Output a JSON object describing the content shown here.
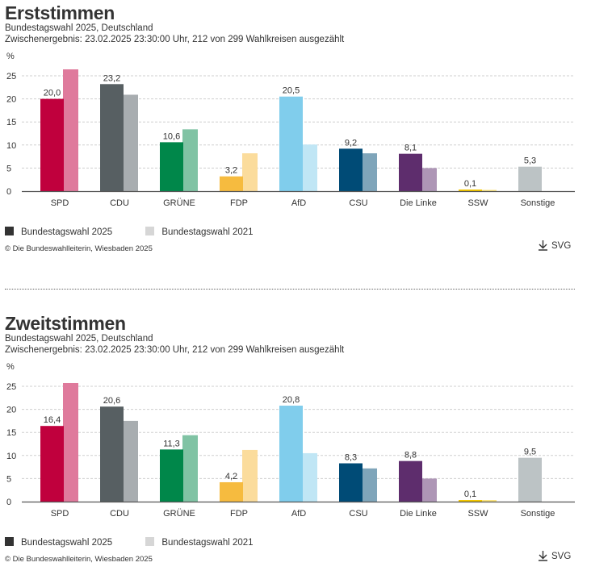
{
  "sections": [
    {
      "title": "Erststimmen",
      "subtitle1": "Bundestagswahl 2025, Deutschland",
      "subtitle2": "Zwischenergebnis: 23.02.2025 23:30:00 Uhr, 212 von 299 Wahlkreisen ausgezählt",
      "legend": [
        {
          "label": "Bundestagswahl 2025",
          "color": "#333333"
        },
        {
          "label": "Bundestagswahl 2021",
          "color": "#d6d6d6"
        }
      ],
      "copyright": "© Die Bundeswahlleiterin, Wiesbaden 2025",
      "download_label": "SVG"
    },
    {
      "title": "Zweitstimmen",
      "subtitle1": "Bundestagswahl 2025, Deutschland",
      "subtitle2": "Zwischenergebnis: 23.02.2025 23:30:00 Uhr, 212 von 299 Wahlkreisen ausgezählt",
      "legend": [
        {
          "label": "Bundestagswahl 2025",
          "color": "#333333"
        },
        {
          "label": "Bundestagswahl 2021",
          "color": "#d6d6d6"
        }
      ],
      "copyright": "© Die Bundeswahlleiterin, Wiesbaden 2025",
      "download_label": "SVG"
    }
  ],
  "chart_data": [
    {
      "type": "bar",
      "title": "Erststimmen",
      "ylabel": "%",
      "xlabel": "",
      "ylim": [
        0,
        25
      ],
      "yticks": [
        0,
        5,
        10,
        15,
        20,
        25
      ],
      "grid": true,
      "legend_position": "bottom-left",
      "categories": [
        "SPD",
        "CDU",
        "GRÜNE",
        "FDP",
        "AfD",
        "CSU",
        "Die Linke",
        "SSW",
        "Sonstige"
      ],
      "colors_2025": [
        "#c0003d",
        "#575f62",
        "#00874a",
        "#f6bb3f",
        "#80cdec",
        "#004b76",
        "#5e2d6d",
        "#f5c800",
        "#bcc3c5"
      ],
      "colors_2021": [
        "#df7a9c",
        "#a8adb0",
        "#80c3a4",
        "#fbdc9c",
        "#c0e6f5",
        "#7fa5ba",
        "#ae96b6",
        "#fae37f",
        "#dde1e2"
      ],
      "series": [
        {
          "name": "Bundestagswahl 2025",
          "values": [
            20.0,
            23.2,
            10.6,
            3.2,
            20.5,
            9.2,
            8.1,
            0.1,
            5.3
          ],
          "labels": [
            "20,0",
            "23,2",
            "10,6",
            "3,2",
            "20,5",
            "9,2",
            "8,1",
            "0,1",
            "5,3"
          ]
        },
        {
          "name": "Bundestagswahl 2021",
          "values": [
            26.4,
            20.9,
            13.4,
            8.2,
            10.1,
            8.2,
            5.0,
            0.0,
            null
          ]
        }
      ]
    },
    {
      "type": "bar",
      "title": "Zweitstimmen",
      "ylabel": "%",
      "xlabel": "",
      "ylim": [
        0,
        25
      ],
      "yticks": [
        0,
        5,
        10,
        15,
        20,
        25
      ],
      "grid": true,
      "legend_position": "bottom-left",
      "categories": [
        "SPD",
        "CDU",
        "GRÜNE",
        "FDP",
        "AfD",
        "CSU",
        "Die Linke",
        "SSW",
        "Sonstige"
      ],
      "colors_2025": [
        "#c0003d",
        "#575f62",
        "#00874a",
        "#f6bb3f",
        "#80cdec",
        "#004b76",
        "#5e2d6d",
        "#f5c800",
        "#bcc3c5"
      ],
      "colors_2021": [
        "#df7a9c",
        "#a8adb0",
        "#80c3a4",
        "#fbdc9c",
        "#c0e6f5",
        "#7fa5ba",
        "#ae96b6",
        "#fae37f",
        "#dde1e2"
      ],
      "series": [
        {
          "name": "Bundestagswahl 2025",
          "values": [
            16.4,
            20.6,
            11.3,
            4.2,
            20.8,
            8.3,
            8.8,
            0.1,
            9.5
          ],
          "labels": [
            "16,4",
            "20,6",
            "11,3",
            "4,2",
            "20,8",
            "8,3",
            "8,8",
            "0,1",
            "9,5"
          ]
        },
        {
          "name": "Bundestagswahl 2021",
          "values": [
            25.7,
            17.5,
            14.4,
            11.2,
            10.5,
            7.2,
            5.0,
            0.1,
            null
          ]
        }
      ]
    }
  ]
}
